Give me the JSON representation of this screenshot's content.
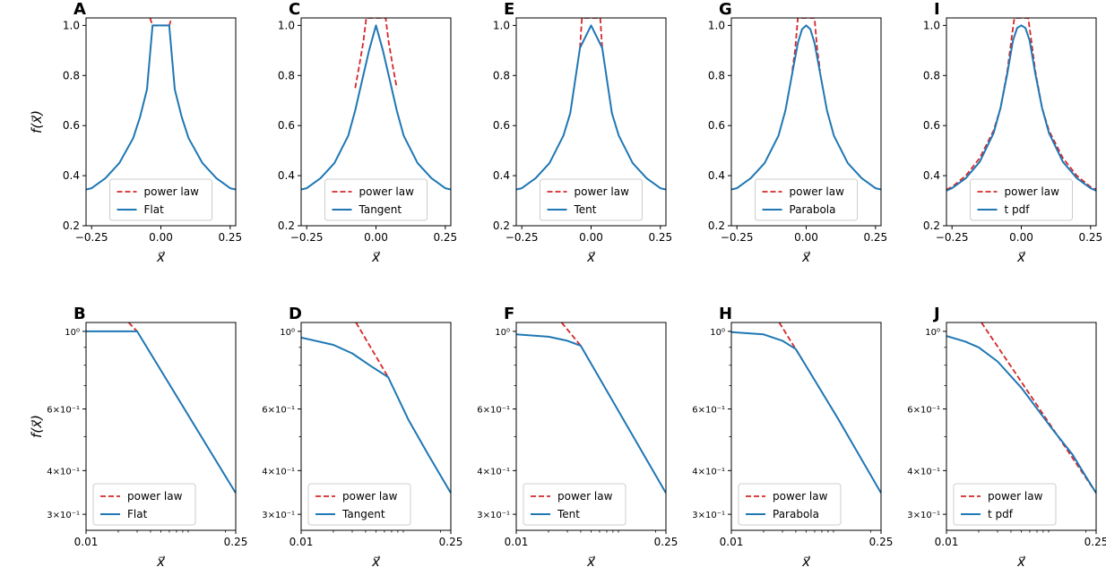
{
  "colors": {
    "curve": "#1f77b4",
    "power_law": "#d62728",
    "axis": "#000000"
  },
  "chart_data": [
    {
      "panel": "A",
      "type": "line",
      "row": "linear",
      "model": "Flat",
      "ylabel": "f(x⃗)",
      "xlabel": "x⃗",
      "xlim": [
        -0.27,
        0.27
      ],
      "ylim": [
        0.2,
        1.03
      ],
      "xticks": [
        -0.25,
        0.0,
        0.25
      ],
      "xtick_labels": [
        "−0.25",
        "0.00",
        "0.25"
      ],
      "yticks": [
        0.2,
        0.4,
        0.6,
        0.8,
        1.0
      ],
      "ytick_labels": [
        "0.2",
        "0.4",
        "0.6",
        "0.8",
        "1.0"
      ],
      "legend": [
        "power law",
        "Flat"
      ],
      "legend_loc": "lower-center",
      "series": [
        {
          "name": "power law",
          "style": "dashed",
          "x": [
            -0.039,
            -0.03,
            0.03,
            0.039
          ],
          "y": [
            1.03,
            1.0,
            1.0,
            1.03
          ]
        },
        {
          "name": "Flat",
          "style": "solid",
          "x": [
            -0.27,
            -0.25,
            -0.2,
            -0.15,
            -0.1,
            -0.075,
            -0.05,
            -0.03,
            0.03,
            0.05,
            0.075,
            0.1,
            0.15,
            0.2,
            0.25,
            0.27
          ],
          "y": [
            0.345,
            0.35,
            0.39,
            0.45,
            0.55,
            0.635,
            0.745,
            1.0,
            1.0,
            0.745,
            0.635,
            0.55,
            0.45,
            0.39,
            0.35,
            0.345
          ]
        }
      ]
    },
    {
      "panel": "C",
      "type": "line",
      "row": "linear",
      "model": "Tangent",
      "ylabel": "",
      "xlabel": "x⃗",
      "xlim": [
        -0.27,
        0.27
      ],
      "ylim": [
        0.2,
        1.03
      ],
      "xticks": [
        -0.25,
        0.0,
        0.25
      ],
      "xtick_labels": [
        "−0.25",
        "0.00",
        "0.25"
      ],
      "yticks": [
        0.2,
        0.4,
        0.6,
        0.8,
        1.0
      ],
      "ytick_labels": [
        "0.2",
        "0.4",
        "0.6",
        "0.8",
        "1.0"
      ],
      "legend": [
        "power law",
        "Tangent"
      ],
      "legend_loc": "lower-center",
      "series": [
        {
          "name": "power law",
          "style": "dashed",
          "x": [
            -0.075,
            -0.06,
            -0.045,
            -0.035,
            0.035,
            0.045,
            0.06,
            0.075
          ],
          "y": [
            0.75,
            0.84,
            0.94,
            1.03,
            1.03,
            0.94,
            0.84,
            0.75
          ]
        },
        {
          "name": "Tangent",
          "style": "solid",
          "x": [
            -0.27,
            -0.25,
            -0.2,
            -0.15,
            -0.1,
            -0.075,
            -0.05,
            -0.025,
            0.0,
            0.025,
            0.05,
            0.075,
            0.1,
            0.15,
            0.2,
            0.25,
            0.27
          ],
          "y": [
            0.345,
            0.35,
            0.39,
            0.45,
            0.56,
            0.66,
            0.78,
            0.9,
            1.0,
            0.9,
            0.78,
            0.66,
            0.56,
            0.45,
            0.39,
            0.35,
            0.345
          ]
        }
      ]
    },
    {
      "panel": "E",
      "type": "line",
      "row": "linear",
      "model": "Tent",
      "ylabel": "",
      "xlabel": "x⃗",
      "xlim": [
        -0.27,
        0.27
      ],
      "ylim": [
        0.2,
        1.03
      ],
      "xticks": [
        -0.25,
        0.0,
        0.25
      ],
      "xtick_labels": [
        "−0.25",
        "0.00",
        "0.25"
      ],
      "yticks": [
        0.2,
        0.4,
        0.6,
        0.8,
        1.0
      ],
      "ytick_labels": [
        "0.2",
        "0.4",
        "0.6",
        "0.8",
        "1.0"
      ],
      "legend": [
        "power law",
        "Tent"
      ],
      "legend_loc": "lower-center",
      "series": [
        {
          "name": "power law",
          "style": "dashed",
          "x": [
            -0.04,
            -0.033,
            0.033,
            0.04
          ],
          "y": [
            0.91,
            1.03,
            1.03,
            0.91
          ]
        },
        {
          "name": "Tent",
          "style": "solid",
          "x": [
            -0.27,
            -0.25,
            -0.2,
            -0.15,
            -0.1,
            -0.075,
            -0.04,
            0.0,
            0.04,
            0.075,
            0.1,
            0.15,
            0.2,
            0.25,
            0.27
          ],
          "y": [
            0.345,
            0.35,
            0.39,
            0.45,
            0.56,
            0.65,
            0.91,
            1.0,
            0.91,
            0.65,
            0.56,
            0.45,
            0.39,
            0.35,
            0.345
          ]
        }
      ]
    },
    {
      "panel": "G",
      "type": "line",
      "row": "linear",
      "model": "Parabola",
      "ylabel": "",
      "xlabel": "x⃗",
      "xlim": [
        -0.27,
        0.27
      ],
      "ylim": [
        0.2,
        1.03
      ],
      "xticks": [
        -0.25,
        0.0,
        0.25
      ],
      "xtick_labels": [
        "−0.25",
        "0.00",
        "0.25"
      ],
      "yticks": [
        0.2,
        0.4,
        0.6,
        0.8,
        1.0
      ],
      "ytick_labels": [
        "0.2",
        "0.4",
        "0.6",
        "0.8",
        "1.0"
      ],
      "legend": [
        "power law",
        "Parabola"
      ],
      "legend_loc": "lower-center",
      "series": [
        {
          "name": "power law",
          "style": "dashed",
          "x": [
            -0.05,
            -0.04,
            -0.03,
            0.03,
            0.04,
            0.05
          ],
          "y": [
            0.82,
            0.9,
            1.03,
            1.03,
            0.9,
            0.82
          ]
        },
        {
          "name": "Parabola",
          "style": "solid",
          "x": [
            -0.27,
            -0.25,
            -0.2,
            -0.15,
            -0.1,
            -0.075,
            -0.05,
            -0.03,
            -0.015,
            0.0,
            0.015,
            0.03,
            0.05,
            0.075,
            0.1,
            0.15,
            0.2,
            0.25,
            0.27
          ],
          "y": [
            0.345,
            0.35,
            0.39,
            0.45,
            0.56,
            0.66,
            0.81,
            0.93,
            0.985,
            1.0,
            0.985,
            0.93,
            0.81,
            0.66,
            0.56,
            0.45,
            0.39,
            0.35,
            0.345
          ]
        }
      ]
    },
    {
      "panel": "I",
      "type": "line",
      "row": "linear",
      "model": "t pdf",
      "ylabel": "",
      "xlabel": "x⃗",
      "xlim": [
        -0.27,
        0.27
      ],
      "ylim": [
        0.2,
        1.03
      ],
      "xticks": [
        -0.25,
        0.0,
        0.25
      ],
      "xtick_labels": [
        "−0.25",
        "0.00",
        "0.25"
      ],
      "yticks": [
        0.2,
        0.4,
        0.6,
        0.8,
        1.0
      ],
      "ytick_labels": [
        "0.2",
        "0.4",
        "0.6",
        "0.8",
        "1.0"
      ],
      "legend": [
        "power law",
        "t pdf"
      ],
      "legend_loc": "lower-center",
      "series": [
        {
          "name": "power law",
          "style": "dashed",
          "x": [
            -0.27,
            -0.25,
            -0.2,
            -0.15,
            -0.1,
            -0.075,
            -0.05,
            -0.035,
            -0.025,
            0.025,
            0.035,
            0.05,
            0.075,
            0.1,
            0.15,
            0.2,
            0.25,
            0.27
          ],
          "y": [
            0.345,
            0.355,
            0.4,
            0.47,
            0.58,
            0.67,
            0.82,
            0.95,
            1.03,
            1.03,
            0.95,
            0.82,
            0.67,
            0.58,
            0.47,
            0.4,
            0.355,
            0.345
          ]
        },
        {
          "name": "t pdf",
          "style": "solid",
          "x": [
            -0.27,
            -0.25,
            -0.2,
            -0.15,
            -0.1,
            -0.075,
            -0.05,
            -0.03,
            -0.015,
            0.0,
            0.015,
            0.03,
            0.05,
            0.075,
            0.1,
            0.15,
            0.2,
            0.25,
            0.27
          ],
          "y": [
            0.34,
            0.35,
            0.39,
            0.455,
            0.57,
            0.67,
            0.81,
            0.94,
            0.99,
            1.0,
            0.99,
            0.94,
            0.81,
            0.67,
            0.57,
            0.455,
            0.39,
            0.35,
            0.34
          ]
        }
      ]
    },
    {
      "panel": "B",
      "type": "line",
      "row": "log",
      "model": "Flat",
      "ylabel": "f(x⃗)",
      "xlabel": "x⃗",
      "xscale": "log",
      "yscale": "log",
      "xlim": [
        0.01,
        0.25
      ],
      "ylim": [
        0.27,
        1.06
      ],
      "xticks": [
        0.01,
        0.25
      ],
      "xtick_labels": [
        "0.01",
        "0.25"
      ],
      "yticks": [
        0.3,
        0.4,
        0.6,
        1.0
      ],
      "ytick_labels": [
        "3×10⁻¹",
        "4×10⁻¹",
        "6×10⁻¹",
        "10⁰"
      ],
      "legend": [
        "power law",
        "Flat"
      ],
      "legend_loc": "lower-left",
      "series": [
        {
          "name": "power law",
          "style": "dashed",
          "x": [
            0.025,
            0.03
          ],
          "y": [
            1.06,
            1.0
          ]
        },
        {
          "name": "Flat",
          "style": "solid",
          "x": [
            0.01,
            0.03,
            0.25
          ],
          "y": [
            1.0,
            1.0,
            0.345
          ]
        }
      ]
    },
    {
      "panel": "D",
      "type": "line",
      "row": "log",
      "model": "Tangent",
      "ylabel": "",
      "xlabel": "x⃗",
      "xscale": "log",
      "yscale": "log",
      "xlim": [
        0.01,
        0.25
      ],
      "ylim": [
        0.27,
        1.06
      ],
      "xticks": [
        0.01,
        0.25
      ],
      "xtick_labels": [
        "0.01",
        "0.25"
      ],
      "yticks": [
        0.3,
        0.4,
        0.6,
        1.0
      ],
      "ytick_labels": [
        "3×10⁻¹",
        "4×10⁻¹",
        "6×10⁻¹",
        "10⁰"
      ],
      "legend": [
        "power law",
        "Tangent"
      ],
      "legend_loc": "lower-left",
      "series": [
        {
          "name": "power law",
          "style": "dashed",
          "x": [
            0.0325,
            0.065
          ],
          "y": [
            1.06,
            0.74
          ]
        },
        {
          "name": "Tangent",
          "style": "solid",
          "x": [
            0.01,
            0.02,
            0.03,
            0.045,
            0.065,
            0.1,
            0.15,
            0.25
          ],
          "y": [
            0.96,
            0.915,
            0.865,
            0.795,
            0.74,
            0.56,
            0.45,
            0.345
          ]
        }
      ]
    },
    {
      "panel": "F",
      "type": "line",
      "row": "log",
      "model": "Tent",
      "ylabel": "",
      "xlabel": "x⃗",
      "xscale": "log",
      "yscale": "log",
      "xlim": [
        0.01,
        0.25
      ],
      "ylim": [
        0.27,
        1.06
      ],
      "xticks": [
        0.01,
        0.25
      ],
      "xtick_labels": [
        "0.01",
        "0.25"
      ],
      "yticks": [
        0.3,
        0.4,
        0.6,
        1.0
      ],
      "ytick_labels": [
        "3×10⁻¹",
        "4×10⁻¹",
        "6×10⁻¹",
        "10⁰"
      ],
      "legend": [
        "power law",
        "Tent"
      ],
      "legend_loc": "lower-left",
      "series": [
        {
          "name": "power law",
          "style": "dashed",
          "x": [
            0.0265,
            0.04
          ],
          "y": [
            1.06,
            0.91
          ]
        },
        {
          "name": "Tent",
          "style": "solid",
          "x": [
            0.01,
            0.02,
            0.03,
            0.04,
            0.25
          ],
          "y": [
            0.98,
            0.965,
            0.94,
            0.91,
            0.345
          ]
        }
      ]
    },
    {
      "panel": "H",
      "type": "line",
      "row": "log",
      "model": "Parabola",
      "ylabel": "",
      "xlabel": "x⃗",
      "xscale": "log",
      "yscale": "log",
      "xlim": [
        0.01,
        0.25
      ],
      "ylim": [
        0.27,
        1.06
      ],
      "xticks": [
        0.01,
        0.25
      ],
      "xtick_labels": [
        "0.01",
        "0.25"
      ],
      "yticks": [
        0.3,
        0.4,
        0.6,
        1.0
      ],
      "ytick_labels": [
        "3×10⁻¹",
        "4×10⁻¹",
        "6×10⁻¹",
        "10⁰"
      ],
      "legend": [
        "power law",
        "Parabola"
      ],
      "legend_loc": "lower-left",
      "series": [
        {
          "name": "power law",
          "style": "dashed",
          "x": [
            0.028,
            0.047
          ],
          "y": [
            1.06,
            0.82
          ]
        },
        {
          "name": "Parabola",
          "style": "solid",
          "x": [
            0.01,
            0.02,
            0.03,
            0.04,
            0.047,
            0.1,
            0.25
          ],
          "y": [
            0.995,
            0.98,
            0.94,
            0.89,
            0.82,
            0.56,
            0.345
          ]
        }
      ]
    },
    {
      "panel": "J",
      "type": "line",
      "row": "log",
      "model": "t pdf",
      "ylabel": "",
      "xlabel": "x⃗",
      "xscale": "log",
      "yscale": "log",
      "xlim": [
        0.01,
        0.25
      ],
      "ylim": [
        0.27,
        1.06
      ],
      "xticks": [
        0.01,
        0.25
      ],
      "xtick_labels": [
        "0.01",
        "0.25"
      ],
      "yticks": [
        0.3,
        0.4,
        0.6,
        1.0
      ],
      "ytick_labels": [
        "3×10⁻¹",
        "4×10⁻¹",
        "6×10⁻¹",
        "10⁰"
      ],
      "legend": [
        "power law",
        "t pdf"
      ],
      "legend_loc": "lower-left",
      "series": [
        {
          "name": "power law",
          "style": "dashed",
          "x": [
            0.0212,
            0.25
          ],
          "y": [
            1.06,
            0.345
          ]
        },
        {
          "name": "t pdf",
          "style": "solid",
          "x": [
            0.01,
            0.015,
            0.02,
            0.03,
            0.05,
            0.075,
            0.1,
            0.15,
            0.2,
            0.25
          ],
          "y": [
            0.97,
            0.935,
            0.9,
            0.82,
            0.69,
            0.585,
            0.52,
            0.445,
            0.385,
            0.345
          ]
        }
      ]
    }
  ]
}
